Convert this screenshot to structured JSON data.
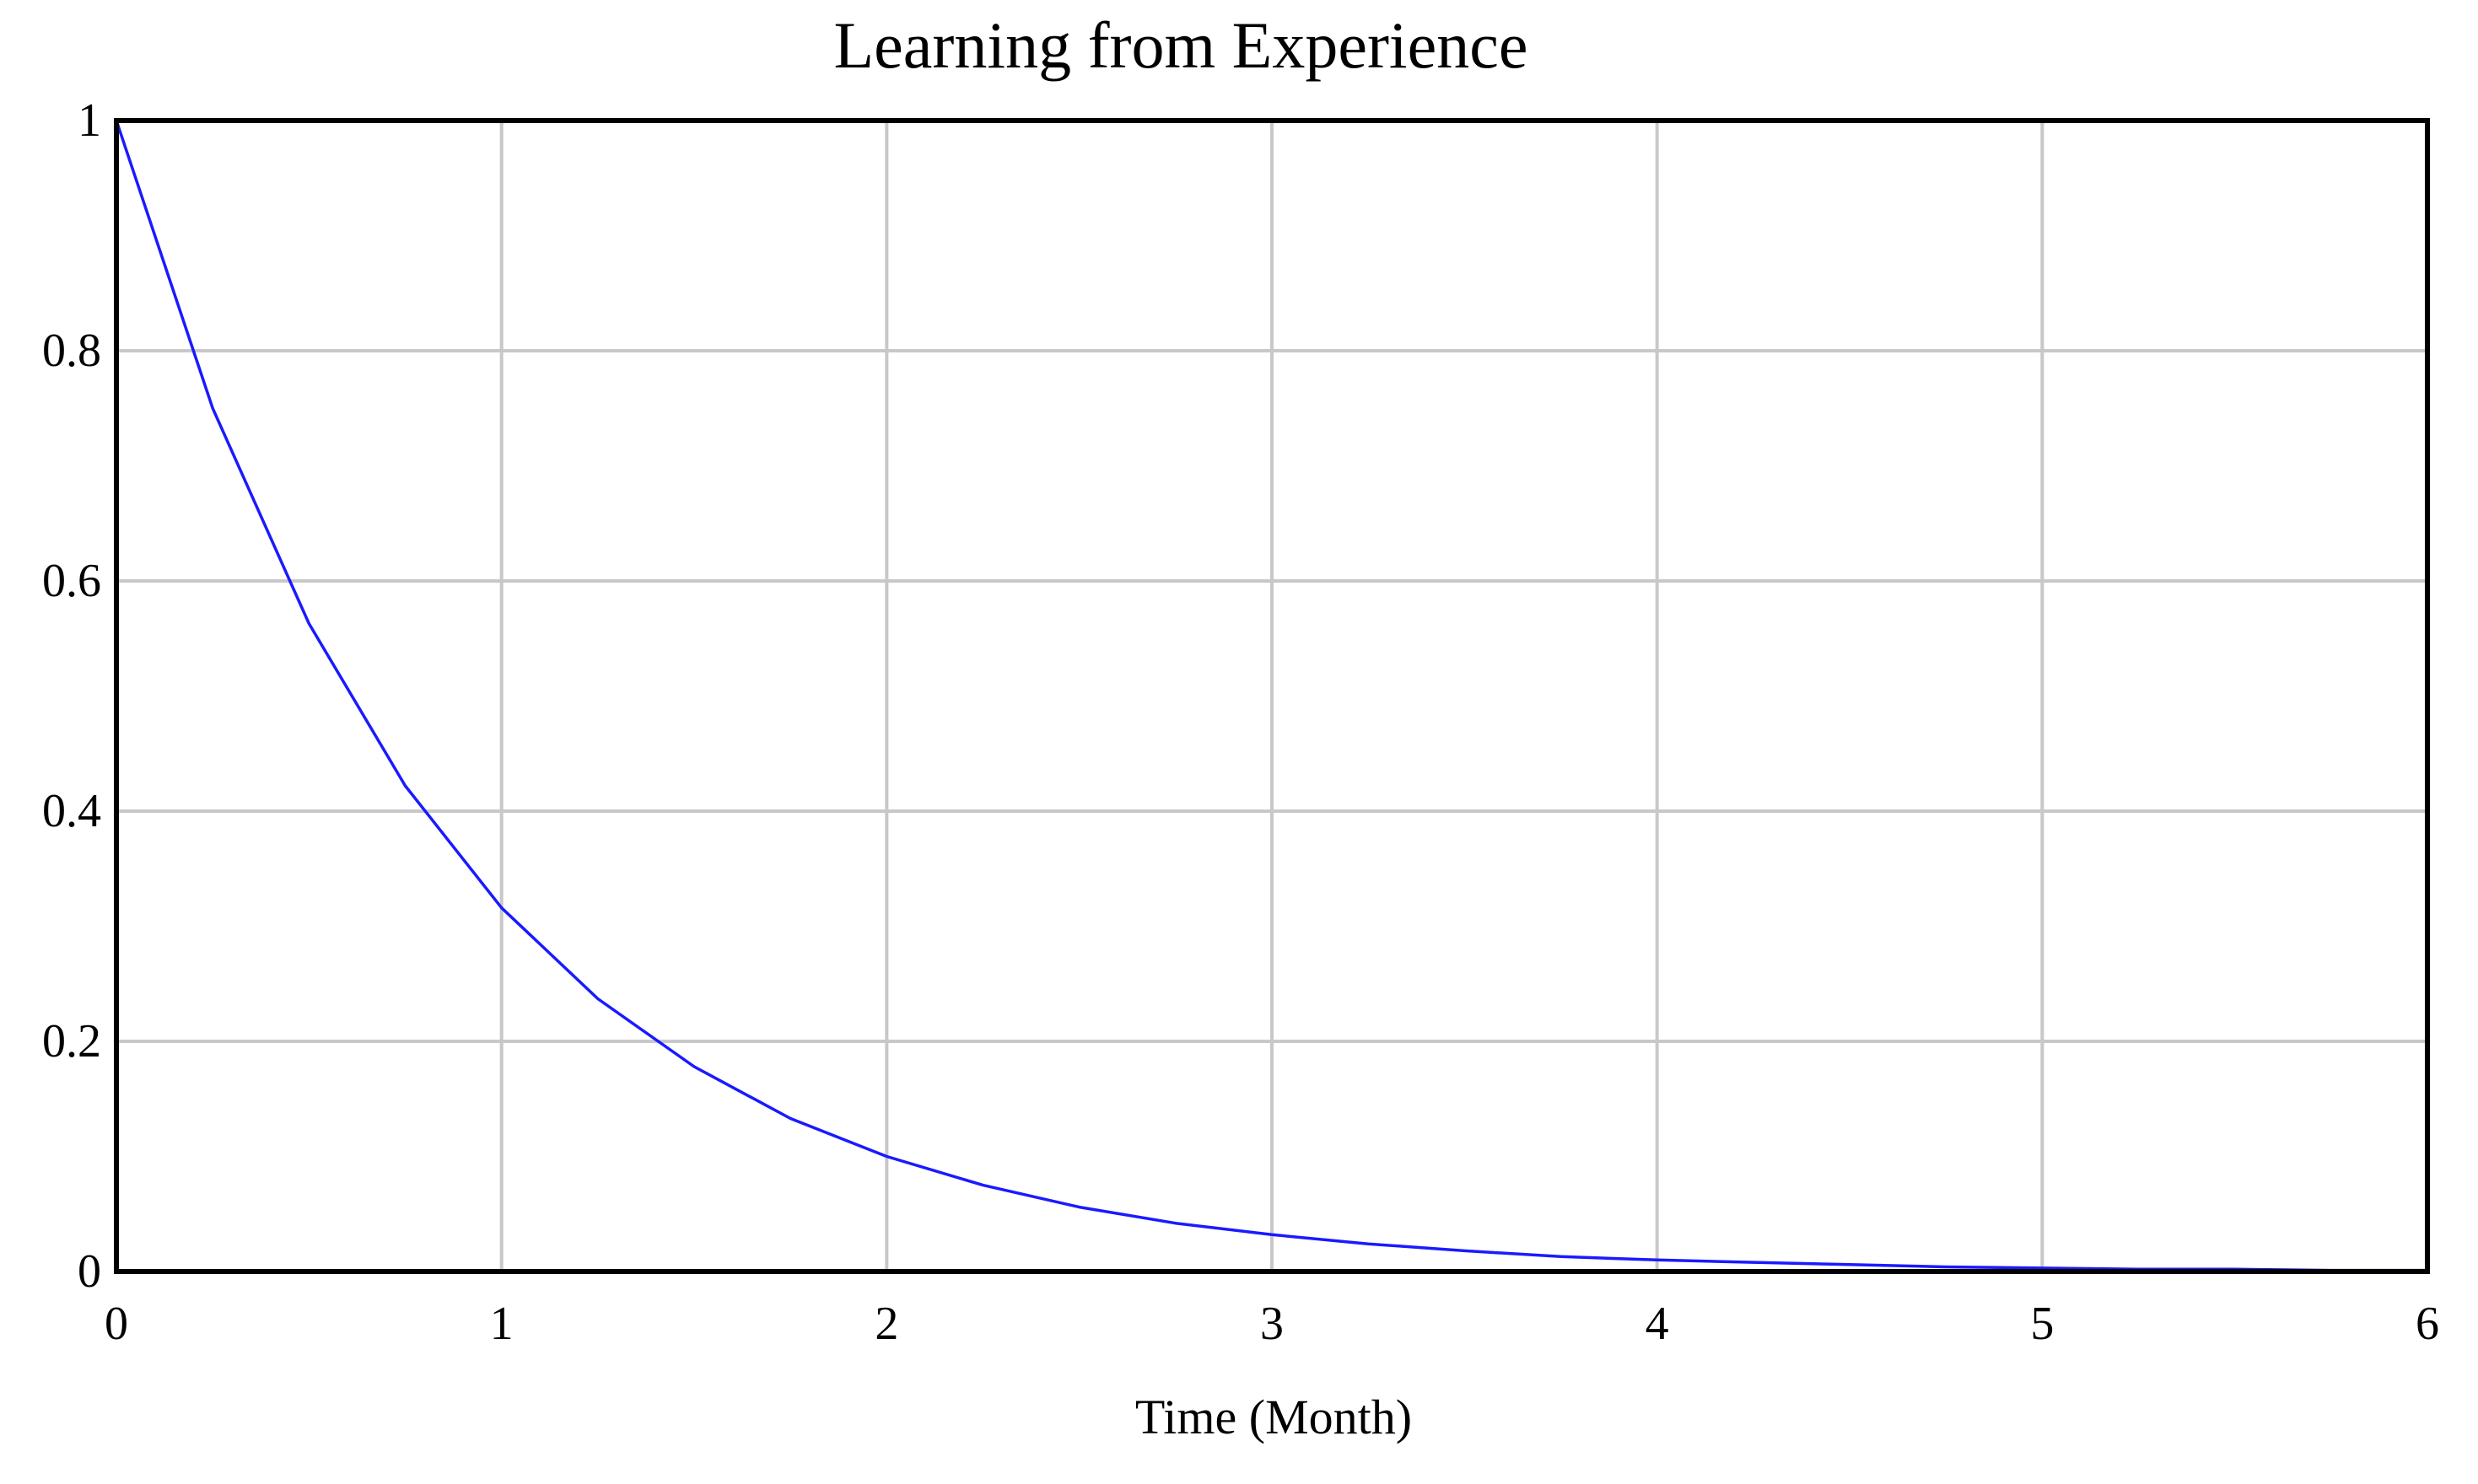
{
  "chart_data": {
    "type": "line",
    "title": "Learning from Experience",
    "xlabel": "Time (Month)",
    "ylabel": "",
    "xlim": [
      0,
      6
    ],
    "ylim": [
      0,
      1
    ],
    "grid": true,
    "x_ticks": [
      0,
      1,
      2,
      3,
      4,
      5,
      6
    ],
    "x_tick_labels": [
      "0",
      "1",
      "2",
      "3",
      "4",
      "5",
      "6"
    ],
    "y_ticks": [
      0,
      0.2,
      0.4,
      0.6,
      0.8,
      1
    ],
    "y_tick_labels": [
      "0",
      "0.2",
      "0.4",
      "0.6",
      "0.8",
      "1"
    ],
    "colors": {
      "series": "#1a1aff",
      "grid": "#c8c8c8",
      "frame": "#000000"
    },
    "series": [
      {
        "x": [
          0,
          0.25,
          0.5,
          0.75,
          1,
          1.25,
          1.5,
          1.75,
          2,
          2.25,
          2.5,
          2.75,
          3,
          3.25,
          3.5,
          3.75,
          4,
          4.25,
          4.5,
          4.75,
          5,
          5.25,
          5.5,
          5.75,
          6
        ],
        "values": [
          1,
          0.75,
          0.563,
          0.422,
          0.316,
          0.237,
          0.178,
          0.133,
          0.1,
          0.075,
          0.056,
          0.042,
          0.032,
          0.024,
          0.018,
          0.013,
          0.01,
          0.008,
          0.006,
          0.004,
          0.003,
          0.002,
          0.002,
          0.001,
          0.001
        ]
      }
    ]
  }
}
